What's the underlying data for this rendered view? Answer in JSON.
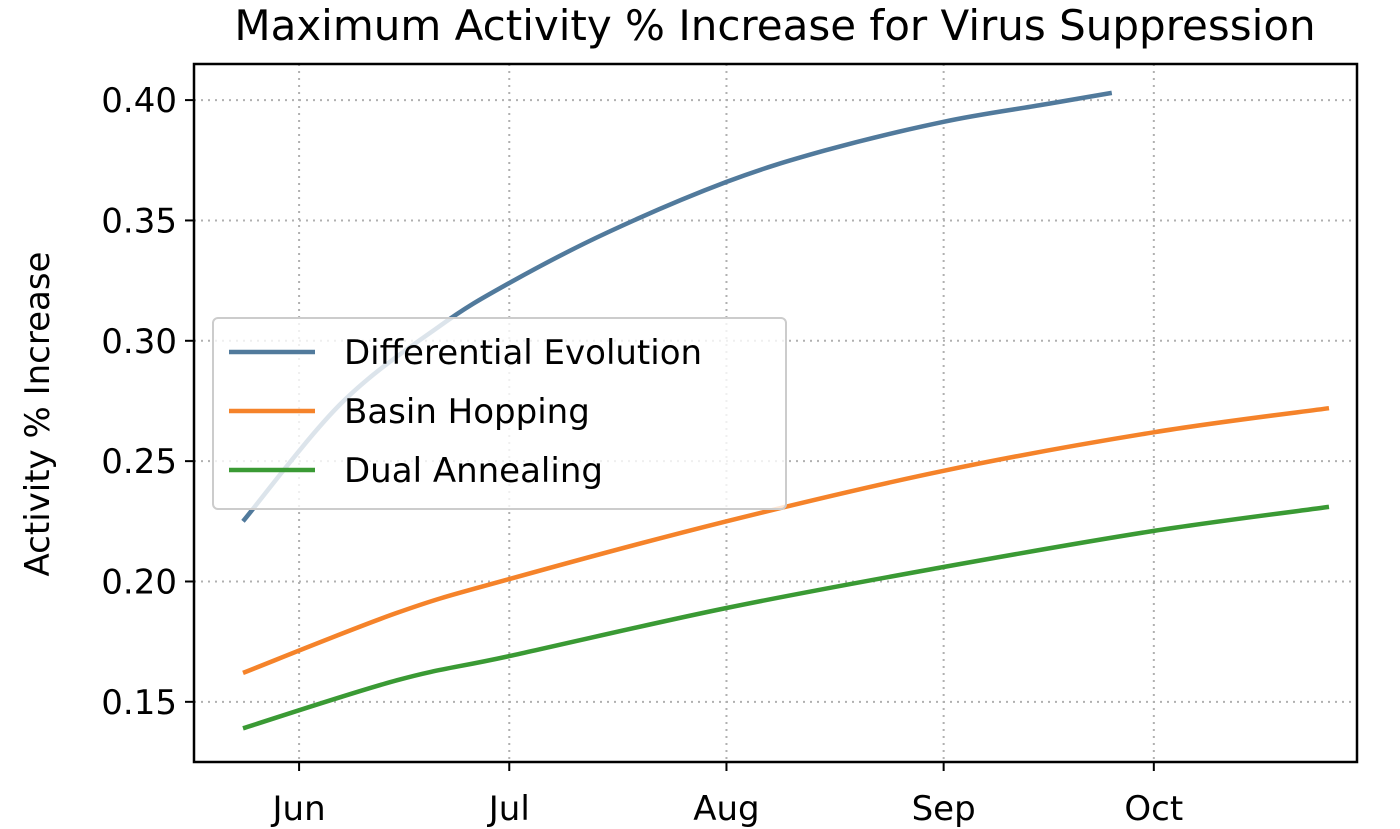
{
  "chart_data": {
    "type": "line",
    "title": "Maximum Activity % Increase for Virus Suppression",
    "xlabel": "",
    "ylabel": "Activity % Increase",
    "x_axis": {
      "type": "date",
      "range": [
        "2020-05-17",
        "2020-10-30"
      ],
      "ticks": [
        {
          "date": "2020-06-01",
          "label": "Jun"
        },
        {
          "date": "2020-07-01",
          "label": "Jul"
        },
        {
          "date": "2020-08-01",
          "label": "Aug"
        },
        {
          "date": "2020-09-01",
          "label": "Sep"
        },
        {
          "date": "2020-10-01",
          "label": "Oct"
        }
      ]
    },
    "y_axis": {
      "range": [
        0.125,
        0.415
      ],
      "ticks": [
        {
          "value": 0.15,
          "label": "0.15"
        },
        {
          "value": 0.2,
          "label": "0.20"
        },
        {
          "value": 0.25,
          "label": "0.25"
        },
        {
          "value": 0.3,
          "label": "0.30"
        },
        {
          "value": 0.35,
          "label": "0.35"
        },
        {
          "value": 0.4,
          "label": "0.40"
        }
      ]
    },
    "grid": true,
    "legend_position": "center-left",
    "series": [
      {
        "name": "Differential Evolution",
        "color": "#517a9c",
        "x": [
          "2020-05-24",
          "2020-06-07",
          "2020-06-21",
          "2020-07-01",
          "2020-07-15",
          "2020-08-01",
          "2020-08-15",
          "2020-09-01",
          "2020-09-15",
          "2020-09-25"
        ],
        "y": [
          0.225,
          0.274,
          0.306,
          0.324,
          0.345,
          0.366,
          0.379,
          0.391,
          0.398,
          0.403
        ]
      },
      {
        "name": "Basin Hopping",
        "color": "#f5832a",
        "x": [
          "2020-05-24",
          "2020-06-15",
          "2020-07-01",
          "2020-08-01",
          "2020-09-01",
          "2020-10-01",
          "2020-10-26"
        ],
        "y": [
          0.162,
          0.187,
          0.201,
          0.225,
          0.246,
          0.262,
          0.272
        ]
      },
      {
        "name": "Dual Annealing",
        "color": "#3a9a34",
        "x": [
          "2020-05-24",
          "2020-06-15",
          "2020-07-01",
          "2020-08-01",
          "2020-09-01",
          "2020-10-01",
          "2020-10-26"
        ],
        "y": [
          0.139,
          0.159,
          0.169,
          0.189,
          0.206,
          0.221,
          0.231
        ]
      }
    ]
  }
}
